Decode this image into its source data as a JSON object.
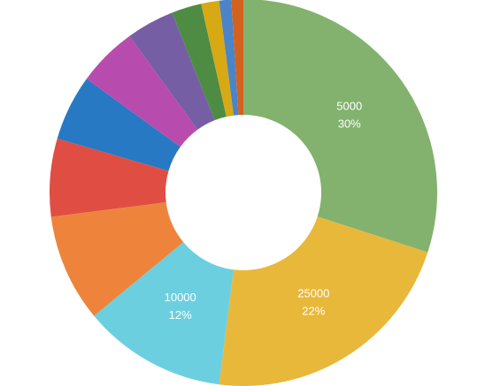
{
  "chart_data": {
    "type": "donut",
    "categories": [
      "5000",
      "25000",
      "10000",
      null,
      null,
      null,
      null,
      null,
      null,
      null,
      null,
      null
    ],
    "values": [
      30,
      22,
      12,
      9,
      6.5,
      5.5,
      5,
      4,
      2.5,
      1.5,
      1,
      1
    ],
    "value_labels": [
      "30%",
      "22%",
      "12%",
      null,
      null,
      null,
      null,
      null,
      null,
      null,
      null,
      null
    ],
    "colors": [
      "#82b26e",
      "#e8b83a",
      "#6ccfe0",
      "#ee843c",
      "#e04e43",
      "#2779c4",
      "#b84cae",
      "#765ea4",
      "#4e8c43",
      "#d6a915",
      "#4b84c8",
      "#d4621f"
    ]
  }
}
